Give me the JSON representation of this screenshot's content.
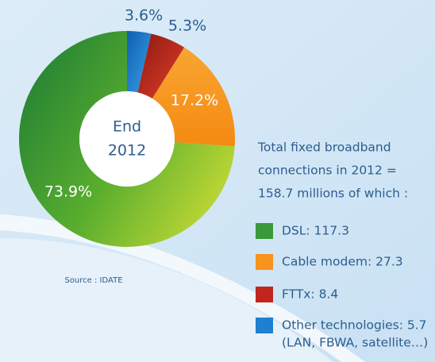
{
  "chart_data": {
    "type": "donut",
    "center_label": [
      "End",
      "2012"
    ],
    "values": [
      3.6,
      5.3,
      17.2,
      73.9
    ],
    "value_labels": [
      "3.6%",
      "5.3%",
      "17.2%",
      "73.9%"
    ],
    "colors": [
      "#1f7fd0",
      "#c0261e",
      "#f7941d",
      "#3a9a3a"
    ],
    "text": [
      "Total fixed broadband",
      "connections in 2012 =",
      "158.7 millions of which :"
    ],
    "legend": [
      {
        "label": "DSL: 117.3",
        "color": "#3a9a3a"
      },
      {
        "label": "Cable modem: 27.3",
        "color": "#f7941d"
      },
      {
        "label": "FTTx: 8.4",
        "color": "#c0261e"
      },
      {
        "label": "Other technologies: 5.7",
        "color": "#1f7fd0"
      }
    ],
    "legend_note": "(LAN, FBWA, satellite…)",
    "source": "Source : IDATE"
  }
}
